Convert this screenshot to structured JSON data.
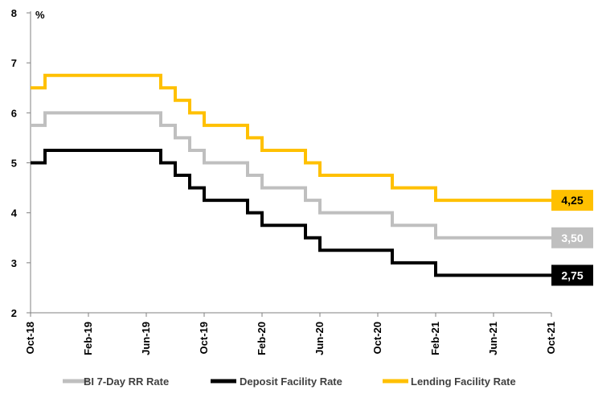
{
  "chart_data": {
    "type": "line",
    "title": "",
    "ylabel": "%",
    "xlabel": "",
    "ylim": [
      2,
      8
    ],
    "yticks": [
      2,
      3,
      4,
      5,
      6,
      7,
      8
    ],
    "xlim": [
      "2018-10",
      "2021-10"
    ],
    "xticks": [
      "Oct-18",
      "Feb-19",
      "Jun-19",
      "Oct-19",
      "Feb-20",
      "Jun-20",
      "Oct-20",
      "Feb-21",
      "Jun-21",
      "Oct-21"
    ],
    "step": true,
    "grid": false,
    "legend_position": "bottom",
    "series": [
      {
        "name": "BI 7-Day RR Rate",
        "color": "#bfbfbf",
        "points": [
          [
            "2018-10",
            5.75
          ],
          [
            "2018-11",
            6.0
          ],
          [
            "2019-07",
            5.75
          ],
          [
            "2019-08",
            5.5
          ],
          [
            "2019-09",
            5.25
          ],
          [
            "2019-10",
            5.0
          ],
          [
            "2020-01",
            4.75
          ],
          [
            "2020-02",
            4.5
          ],
          [
            "2020-05",
            4.25
          ],
          [
            "2020-06",
            4.0
          ],
          [
            "2020-11",
            3.75
          ],
          [
            "2021-02",
            3.5
          ],
          [
            "2021-10",
            3.5
          ]
        ],
        "end_label": "3,50"
      },
      {
        "name": "Deposit Facility Rate",
        "color": "#000000",
        "points": [
          [
            "2018-10",
            5.0
          ],
          [
            "2018-11",
            5.25
          ],
          [
            "2019-07",
            5.0
          ],
          [
            "2019-08",
            4.75
          ],
          [
            "2019-09",
            4.5
          ],
          [
            "2019-10",
            4.25
          ],
          [
            "2020-01",
            4.0
          ],
          [
            "2020-02",
            3.75
          ],
          [
            "2020-05",
            3.5
          ],
          [
            "2020-06",
            3.25
          ],
          [
            "2020-11",
            3.0
          ],
          [
            "2021-02",
            2.75
          ],
          [
            "2021-10",
            2.75
          ]
        ],
        "end_label": "2,75"
      },
      {
        "name": "Lending Facility Rate",
        "color": "#ffc000",
        "points": [
          [
            "2018-10",
            6.5
          ],
          [
            "2018-11",
            6.75
          ],
          [
            "2019-07",
            6.5
          ],
          [
            "2019-08",
            6.25
          ],
          [
            "2019-09",
            6.0
          ],
          [
            "2019-10",
            5.75
          ],
          [
            "2020-01",
            5.5
          ],
          [
            "2020-02",
            5.25
          ],
          [
            "2020-05",
            5.0
          ],
          [
            "2020-06",
            4.75
          ],
          [
            "2020-11",
            4.5
          ],
          [
            "2021-02",
            4.25
          ],
          [
            "2021-10",
            4.25
          ]
        ],
        "end_label": "4,25"
      }
    ]
  }
}
